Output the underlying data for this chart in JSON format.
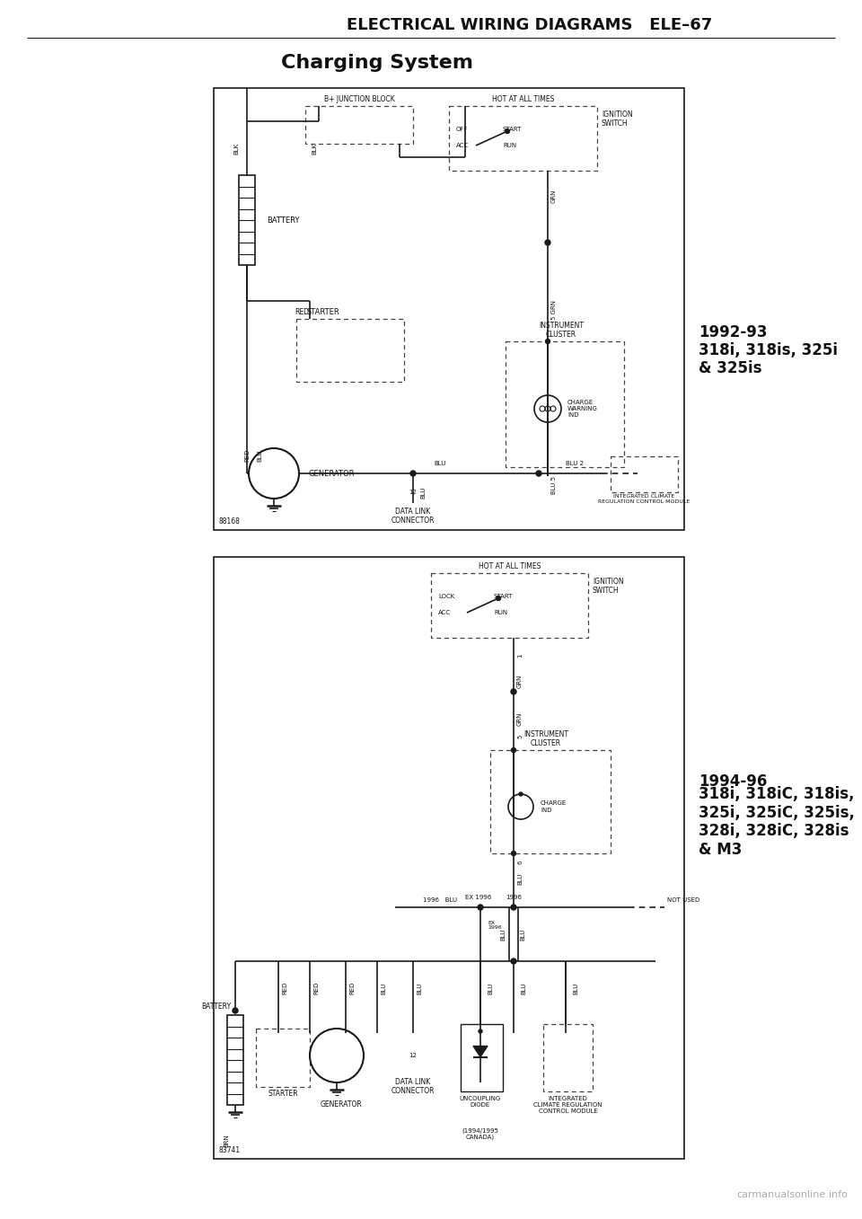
{
  "page_title": "ELECTRICAL WIRING DIAGRAMS   ELE–67",
  "section_title": "Charging System",
  "bg_color": "#ffffff",
  "line_color": "#1a1a1a",
  "text_color": "#111111",
  "diagram1_label": "88168",
  "diagram1_year": "1992-93",
  "diagram1_models": "318i, 318is, 325i\n& 325is",
  "diagram2_label": "83741",
  "diagram2_year": "1994-96",
  "diagram2_models": "318i, 318iC, 318is,\n325i, 325iC, 325is,\n328i, 328iC, 328is\n& M3",
  "watermark": "carmanualsonline.info"
}
